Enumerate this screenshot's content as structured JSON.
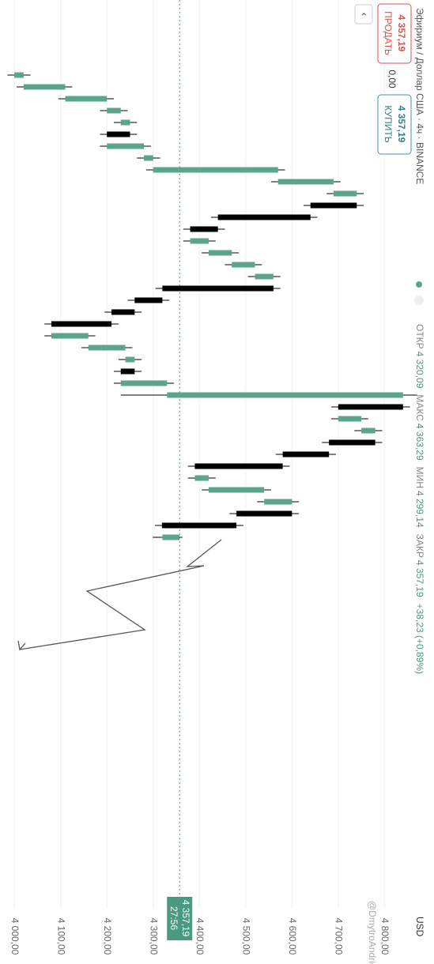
{
  "header": {
    "title": "Эфириум / Доллар США · 4ч · BINANCE",
    "sell_price": "4 357,19",
    "sell_label": "ПРОДАТЬ",
    "spread": "0,00",
    "buy_price": "4 357,19",
    "buy_label": "КУПИТЬ",
    "legend": [
      [
        "ОТКР",
        "4 320,09"
      ],
      [
        "МАКС",
        "4 363,29"
      ],
      [
        "МИН",
        "4 299,14"
      ],
      [
        "ЗАКР",
        "4 357,19"
      ]
    ],
    "change": "+38,23 (+0,89%)"
  },
  "chart_data": {
    "type": "candlestick",
    "series": [
      {
        "up_color": "#5ba58f",
        "down_color": "#000000",
        "open": [
          4000,
          4020,
          4110,
          4200,
          4230,
          4250,
          4200,
          4280,
          4300,
          4570,
          4690,
          4740,
          4640,
          4440,
          4380,
          4420,
          4470,
          4520,
          4560,
          4320,
          4260,
          4210,
          4080,
          4160,
          4240,
          4260,
          4230,
          4330,
          4840,
          4700,
          4750,
          4780,
          4680,
          4580,
          4390,
          4420,
          4540,
          4600,
          4480,
          4320.09
        ],
        "high": [
          4035,
          4125,
          4215,
          4245,
          4265,
          4265,
          4295,
          4315,
          4585,
          4705,
          4755,
          4755,
          4655,
          4455,
          4435,
          4485,
          4535,
          4575,
          4575,
          4335,
          4275,
          4225,
          4175,
          4255,
          4275,
          4275,
          4345,
          4870,
          4855,
          4765,
          4795,
          4795,
          4695,
          4595,
          4435,
          4555,
          4615,
          4615,
          4495,
          4363.29
        ],
        "low": [
          3985,
          4005,
          4095,
          4185,
          4215,
          4185,
          4185,
          4265,
          4285,
          4555,
          4675,
          4625,
          4425,
          4365,
          4365,
          4405,
          4455,
          4505,
          4305,
          4245,
          4195,
          4065,
          4065,
          4145,
          4225,
          4215,
          4215,
          4230,
          4685,
          4685,
          4735,
          4665,
          4565,
          4375,
          4375,
          4405,
          4525,
          4465,
          4303.96,
          4299.14
        ],
        "close": [
          4020,
          4110,
          4200,
          4230,
          4250,
          4200,
          4280,
          4300,
          4570,
          4690,
          4740,
          4640,
          4440,
          4380,
          4420,
          4470,
          4520,
          4560,
          4320,
          4260,
          4210,
          4080,
          4160,
          4240,
          4260,
          4230,
          4330,
          4840,
          4700,
          4750,
          4780,
          4680,
          4580,
          4390,
          4420,
          4540,
          4600,
          4480,
          4318.96,
          4357.19
        ]
      }
    ],
    "ylim": [
      3969,
      4907
    ],
    "yticks": [
      {
        "value": 4000,
        "label": "4 000,00"
      },
      {
        "value": 4100,
        "label": "4 100,00"
      },
      {
        "value": 4200,
        "label": "4 200,00"
      },
      {
        "value": 4300,
        "label": "4 300,00"
      },
      {
        "value": 4400,
        "label": "4 400,00"
      },
      {
        "value": 4500,
        "label": "4 500,00"
      },
      {
        "value": 4600,
        "label": "4 600,00"
      },
      {
        "value": 4700,
        "label": "4 700,00"
      },
      {
        "value": 4800,
        "label": "4 800,00"
      }
    ],
    "grid": true,
    "axis_unit": "USD",
    "last_price": {
      "value": 4357.19,
      "label": "4 357,19"
    },
    "countdown": "27:56",
    "watermark": "@DmytroAndrieiev"
  }
}
